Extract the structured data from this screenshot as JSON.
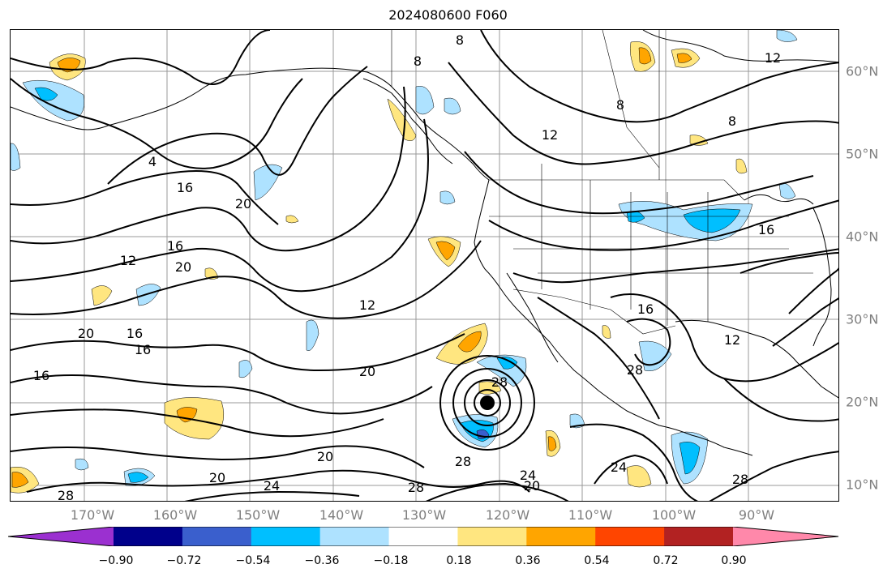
{
  "title": "2024080600 F060",
  "longitude_labels": [
    "170°W",
    "160°W",
    "150°W",
    "140°W",
    "130°W",
    "120°W",
    "110°W",
    "100°W",
    "90°W"
  ],
  "latitude_labels": [
    "60°N",
    "50°N",
    "40°N",
    "30°N",
    "20°N",
    "10°N"
  ],
  "contour_labels": [
    "8",
    "8",
    "12",
    "8",
    "8",
    "4",
    "16",
    "20",
    "12",
    "16",
    "20",
    "12",
    "16",
    "16",
    "20",
    "16",
    "20",
    "20",
    "28",
    "28",
    "24",
    "28",
    "24",
    "20",
    "28",
    "16",
    "12",
    "28",
    "24",
    "28",
    "20",
    "16",
    "12"
  ],
  "colorbar": {
    "ticks": [
      "−0.90",
      "−0.72",
      "−0.54",
      "−0.36",
      "−0.18",
      "0.18",
      "0.36",
      "0.54",
      "0.72",
      "0.90"
    ],
    "colors": [
      "#9b30d0",
      "#00008b",
      "#3a5fcd",
      "#00bfff",
      "#aee2ff",
      "#ffffff",
      "#ffe680",
      "#ffa500",
      "#ff4500",
      "#b22222",
      "#ff88aa"
    ]
  }
}
